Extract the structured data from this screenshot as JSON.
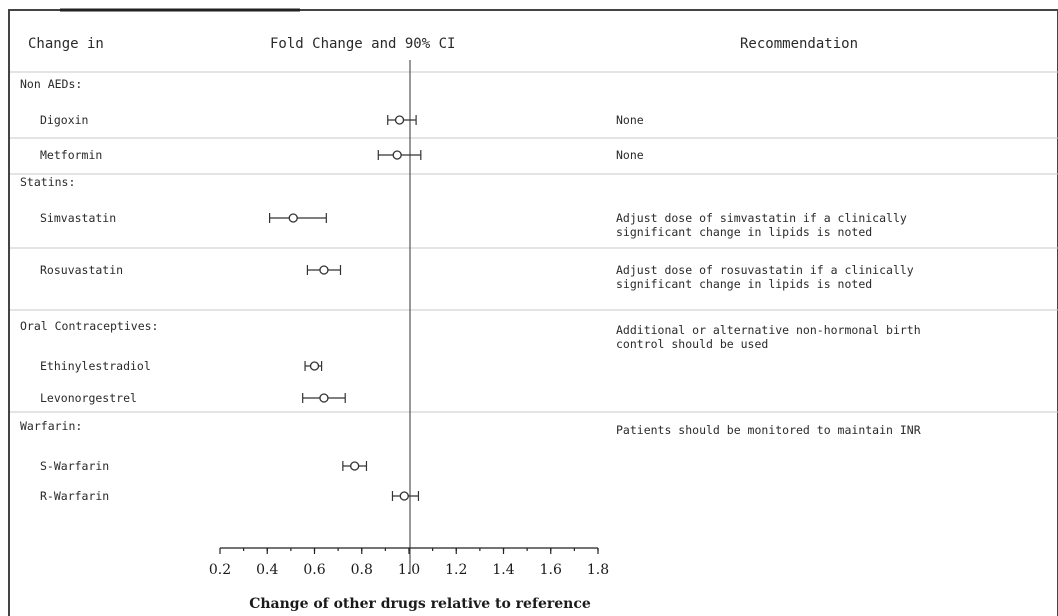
{
  "headers": {
    "change_in": "Change in",
    "fold_change": "Fold Change and 90% CI",
    "recommendation": "Recommendation"
  },
  "chart_data": {
    "type": "forest",
    "xlabel": "Change of other drugs relative to reference",
    "xlim": [
      0.2,
      1.8
    ],
    "xticks": [
      "0.2",
      "0.4",
      "0.6",
      "0.8",
      "1.0",
      "1.2",
      "1.4",
      "1.6",
      "1.8"
    ],
    "reference_line": 1.0,
    "groups": [
      {
        "label": "Non AEDs:",
        "recommendation": [],
        "rows": [
          {
            "label": "Digoxin",
            "estimate": 0.96,
            "lower": 0.91,
            "upper": 1.03,
            "recommendation": [
              "None"
            ]
          },
          {
            "label": "Metformin",
            "estimate": 0.95,
            "lower": 0.87,
            "upper": 1.05,
            "recommendation": [
              "None"
            ]
          }
        ]
      },
      {
        "label": "Statins:",
        "recommendation": [],
        "rows": [
          {
            "label": "Simvastatin",
            "estimate": 0.51,
            "lower": 0.41,
            "upper": 0.65,
            "recommendation": [
              "Adjust dose of simvastatin if a clinically",
              "significant change in lipids is noted"
            ]
          },
          {
            "label": "Rosuvastatin",
            "estimate": 0.64,
            "lower": 0.57,
            "upper": 0.71,
            "recommendation": [
              "Adjust dose of rosuvastatin if a clinically",
              "significant change in lipids is noted"
            ]
          }
        ]
      },
      {
        "label": "Oral Contraceptives:",
        "recommendation": [
          "Additional or alternative non-hormonal birth",
          "control should be used"
        ],
        "rows": [
          {
            "label": "Ethinylestradiol",
            "estimate": 0.6,
            "lower": 0.56,
            "upper": 0.63,
            "recommendation": []
          },
          {
            "label": "Levonorgestrel",
            "estimate": 0.64,
            "lower": 0.55,
            "upper": 0.73,
            "recommendation": []
          }
        ]
      },
      {
        "label": "Warfarin:",
        "recommendation": [
          "Patients should be monitored to maintain INR"
        ],
        "rows": [
          {
            "label": "S-Warfarin",
            "estimate": 0.77,
            "lower": 0.72,
            "upper": 0.82,
            "recommendation": []
          },
          {
            "label": "R-Warfarin",
            "estimate": 0.98,
            "lower": 0.93,
            "upper": 1.04,
            "recommendation": []
          }
        ]
      }
    ]
  }
}
